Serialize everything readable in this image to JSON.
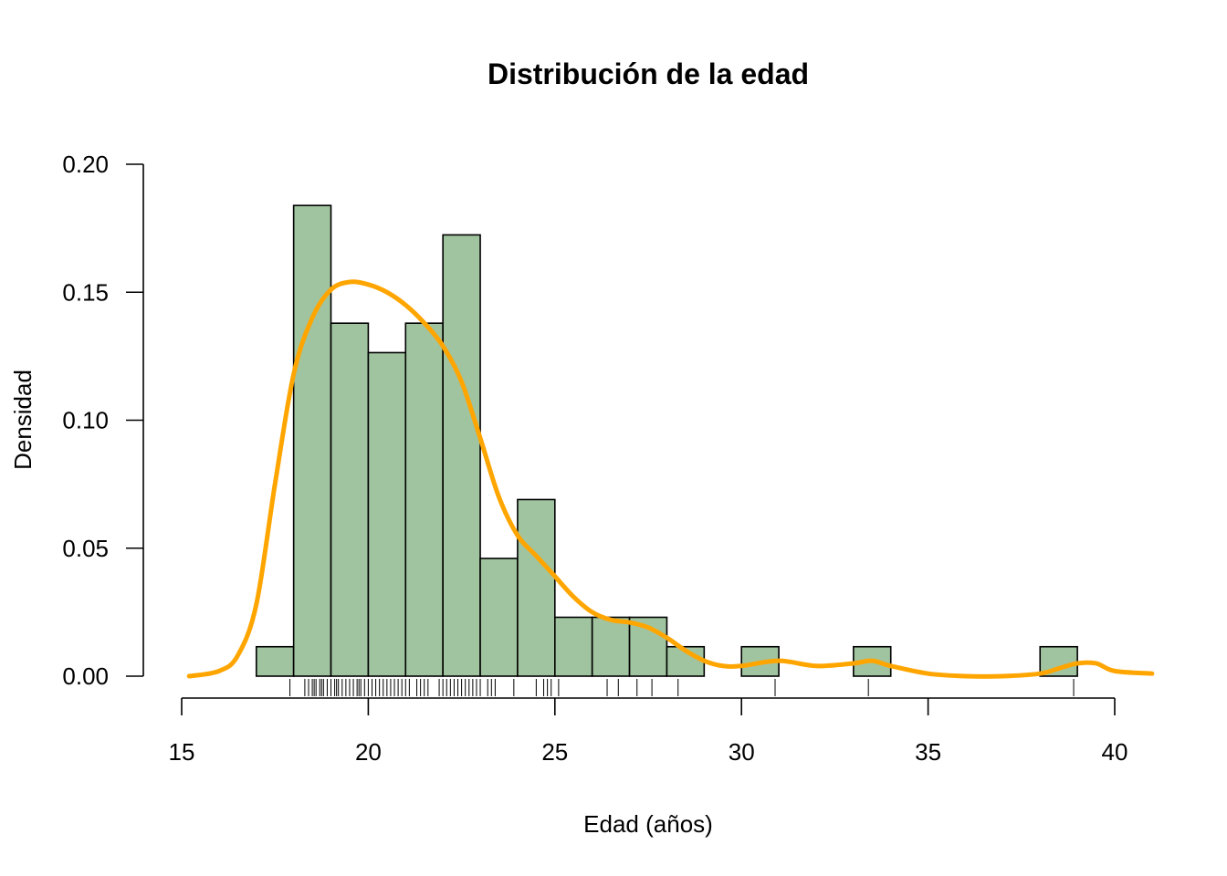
{
  "chart_data": {
    "type": "bar",
    "subtype": "histogram",
    "title": "Distribución de la edad",
    "xlabel": "Edad (años)",
    "ylabel": "Densidad",
    "xlim": [
      15,
      41
    ],
    "ylim": [
      0,
      0.2
    ],
    "x_ticks": [
      15,
      20,
      25,
      30,
      35,
      40
    ],
    "y_ticks": [
      "0.00",
      "0.05",
      "0.10",
      "0.15",
      "0.20"
    ],
    "grid": false,
    "bar_color": "#A0C4A0",
    "bins": [
      {
        "start": 17,
        "end": 18,
        "value": 0.0115
      },
      {
        "start": 18,
        "end": 19,
        "value": 0.1839
      },
      {
        "start": 19,
        "end": 20,
        "value": 0.1379
      },
      {
        "start": 20,
        "end": 21,
        "value": 0.1264
      },
      {
        "start": 21,
        "end": 22,
        "value": 0.1379
      },
      {
        "start": 22,
        "end": 23,
        "value": 0.1724
      },
      {
        "start": 23,
        "end": 24,
        "value": 0.046
      },
      {
        "start": 24,
        "end": 25,
        "value": 0.069
      },
      {
        "start": 25,
        "end": 26,
        "value": 0.023
      },
      {
        "start": 26,
        "end": 27,
        "value": 0.023
      },
      {
        "start": 27,
        "end": 28,
        "value": 0.023
      },
      {
        "start": 28,
        "end": 29,
        "value": 0.0115
      },
      {
        "start": 29,
        "end": 30,
        "value": 0
      },
      {
        "start": 30,
        "end": 31,
        "value": 0.0115
      },
      {
        "start": 31,
        "end": 32,
        "value": 0
      },
      {
        "start": 32,
        "end": 33,
        "value": 0
      },
      {
        "start": 33,
        "end": 34,
        "value": 0.0115
      },
      {
        "start": 34,
        "end": 35,
        "value": 0
      },
      {
        "start": 35,
        "end": 36,
        "value": 0
      },
      {
        "start": 36,
        "end": 37,
        "value": 0
      },
      {
        "start": 37,
        "end": 38,
        "value": 0
      },
      {
        "start": 38,
        "end": 39,
        "value": 0.0115
      }
    ],
    "density_curve": {
      "color": "#FFA500",
      "x": [
        15.2,
        16.0,
        16.5,
        17.0,
        17.5,
        18.0,
        18.5,
        19.0,
        19.5,
        20.0,
        20.5,
        21.0,
        21.5,
        22.0,
        22.5,
        23.0,
        23.5,
        24.0,
        24.5,
        25.0,
        25.5,
        26.0,
        26.5,
        27.0,
        27.5,
        28.0,
        28.5,
        29.0,
        29.5,
        30.0,
        31.0,
        32.0,
        33.0,
        33.5,
        34.0,
        35.0,
        36.0,
        37.0,
        38.0,
        38.5,
        39.0,
        39.5,
        40.0,
        41.0
      ],
      "y": [
        0.0,
        0.002,
        0.008,
        0.028,
        0.075,
        0.118,
        0.14,
        0.151,
        0.154,
        0.153,
        0.15,
        0.145,
        0.138,
        0.129,
        0.115,
        0.093,
        0.07,
        0.055,
        0.047,
        0.039,
        0.031,
        0.025,
        0.022,
        0.021,
        0.019,
        0.015,
        0.01,
        0.006,
        0.004,
        0.004,
        0.006,
        0.004,
        0.005,
        0.006,
        0.004,
        0.001,
        0.0,
        0.0,
        0.001,
        0.003,
        0.005,
        0.005,
        0.002,
        0.001
      ]
    },
    "rug": [
      17.9,
      18.3,
      18.4,
      18.5,
      18.55,
      18.6,
      18.7,
      18.75,
      18.8,
      18.9,
      19.0,
      19.1,
      19.15,
      19.2,
      19.3,
      19.4,
      19.5,
      19.6,
      19.7,
      19.75,
      19.8,
      19.9,
      20.0,
      20.1,
      20.2,
      20.3,
      20.4,
      20.5,
      20.6,
      20.7,
      20.8,
      20.9,
      21.0,
      21.1,
      21.3,
      21.4,
      21.5,
      21.6,
      21.9,
      22.0,
      22.1,
      22.2,
      22.3,
      22.4,
      22.5,
      22.6,
      22.7,
      22.8,
      22.9,
      23.0,
      23.2,
      23.3,
      23.4,
      23.9,
      24.5,
      24.7,
      24.8,
      24.9,
      25.1,
      26.4,
      26.7,
      27.2,
      27.6,
      28.3,
      30.9,
      33.4,
      38.9
    ]
  }
}
